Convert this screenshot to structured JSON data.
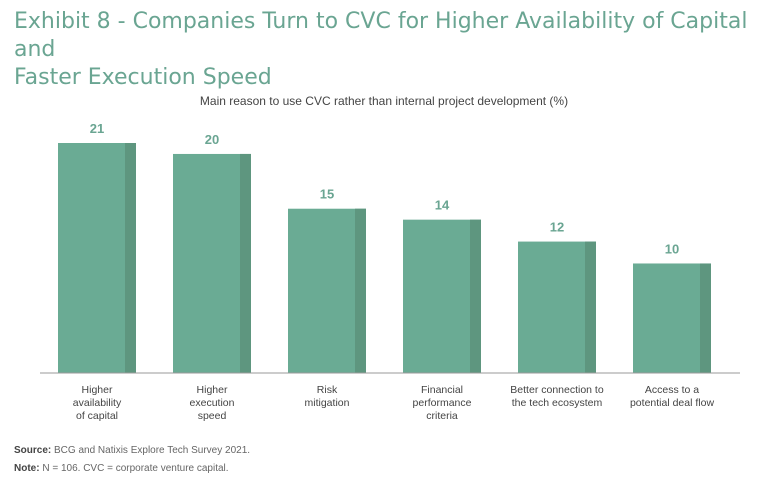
{
  "title_lines": [
    "Exhibit 8 - Companies Turn to CVC for Higher Availability of Capital and",
    "Faster Execution Speed"
  ],
  "subtitle": "Main reason to use CVC rather than internal project development (%)",
  "colors": {
    "title": "#6aa592",
    "bar": "#6aab94",
    "bar_shade": "#5e967f",
    "label": "#6aa592"
  },
  "chart_data": {
    "type": "bar",
    "title": "Main reason to use CVC rather than internal project development (%)",
    "categories": [
      [
        "Higher",
        "availability",
        "of capital"
      ],
      [
        "Higher",
        "execution",
        "speed"
      ],
      [
        "Risk",
        "mitigation"
      ],
      [
        "Financial",
        "performance",
        "criteria"
      ],
      [
        "Better connection to",
        "the tech ecosystem"
      ],
      [
        "Access to a",
        "potential deal flow"
      ]
    ],
    "values": [
      21,
      20,
      15,
      14,
      12,
      10
    ],
    "ylim": [
      0,
      21
    ],
    "grid": false,
    "legend": "none"
  },
  "footer": {
    "source_label": "Source:",
    "source_text": " BCG and Natixis Explore Tech Survey 2021.",
    "note_label": "Note:",
    "note_text": " N = 106. CVC = corporate venture capital."
  }
}
